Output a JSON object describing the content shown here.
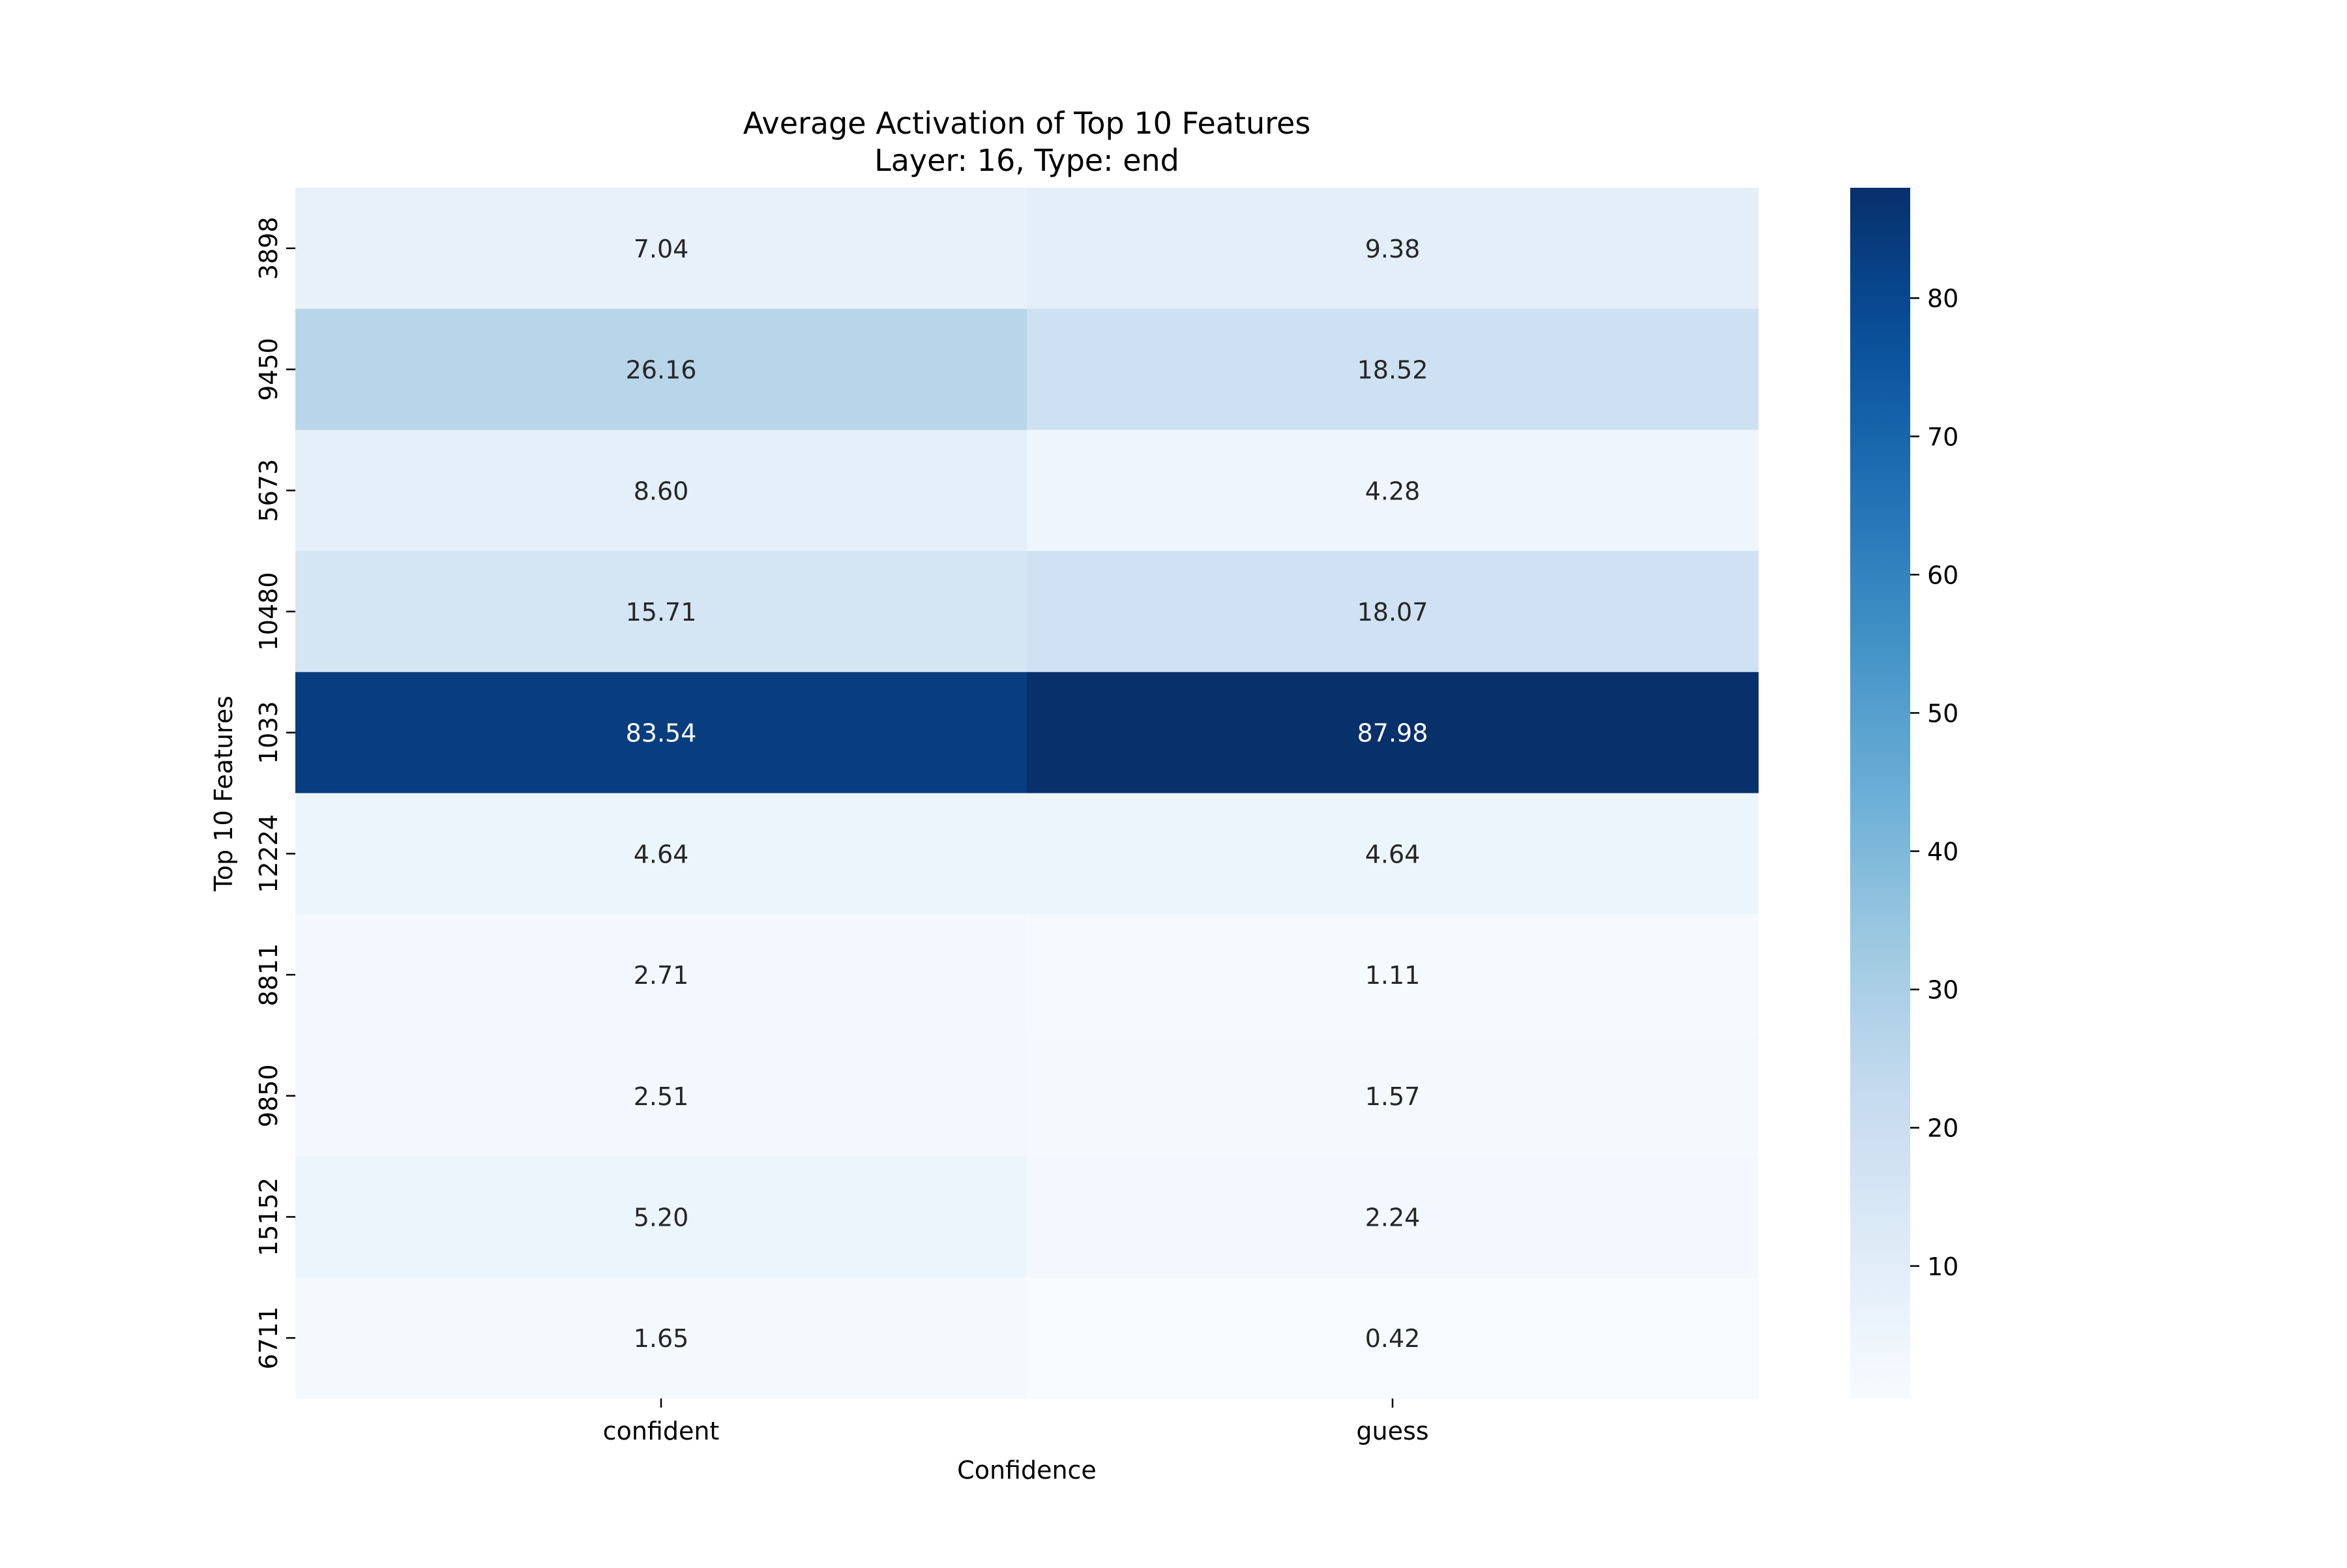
{
  "chart_data": {
    "type": "heatmap",
    "title": "Average Activation of Top 10 Features",
    "subtitle": "Layer: 16, Type: end",
    "xlabel": "Confidence",
    "ylabel": "Top 10 Features",
    "columns": [
      "confident",
      "guess"
    ],
    "rows": [
      "3898",
      "9450",
      "5673",
      "10480",
      "1033",
      "12224",
      "8811",
      "9850",
      "15152",
      "6711"
    ],
    "values": [
      [
        7.04,
        9.38
      ],
      [
        26.16,
        18.52
      ],
      [
        8.6,
        4.28
      ],
      [
        15.71,
        18.07
      ],
      [
        83.54,
        87.98
      ],
      [
        4.64,
        4.64
      ],
      [
        2.71,
        1.11
      ],
      [
        2.51,
        1.57
      ],
      [
        5.2,
        2.24
      ],
      [
        1.65,
        0.42
      ]
    ],
    "value_labels": [
      [
        "7.04",
        "9.38"
      ],
      [
        "26.16",
        "18.52"
      ],
      [
        "8.60",
        "4.28"
      ],
      [
        "15.71",
        "18.07"
      ],
      [
        "83.54",
        "87.98"
      ],
      [
        "4.64",
        "4.64"
      ],
      [
        "2.71",
        "1.11"
      ],
      [
        "2.51",
        "1.57"
      ],
      [
        "5.20",
        "2.24"
      ],
      [
        "1.65",
        "0.42"
      ]
    ],
    "colormap": "Blues",
    "colorbar": {
      "range": [
        0.42,
        87.98
      ],
      "ticks": [
        10,
        20,
        30,
        40,
        50,
        60,
        70,
        80
      ]
    },
    "grid": false
  }
}
